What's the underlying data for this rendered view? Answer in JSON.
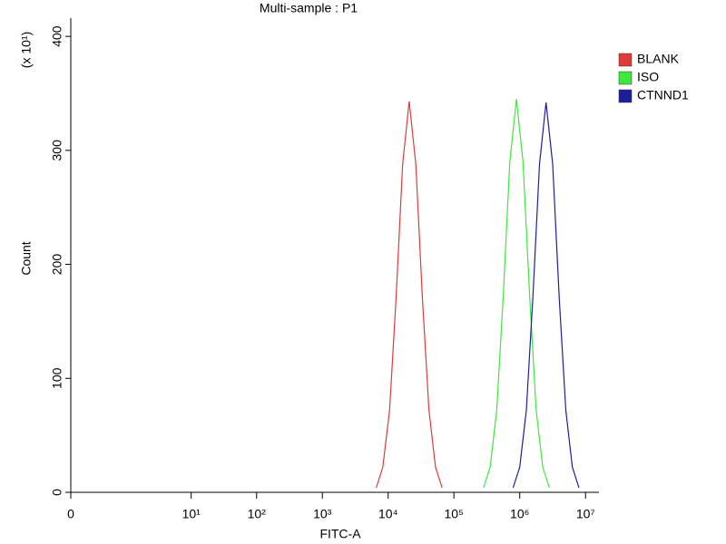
{
  "chart_data": {
    "type": "line",
    "title": "Multi-sample : P1",
    "x_label": "FITC-A",
    "y_label": "Count",
    "y_multiplier": "(x 10¹)",
    "xscale": "log",
    "xlim": [
      0,
      16000000
    ],
    "xticks": [
      0,
      {
        "value": 10,
        "label": "10¹"
      },
      {
        "value": 100,
        "label": "10²"
      },
      {
        "value": 1000,
        "label": "10³"
      },
      {
        "value": 10000,
        "label": "10⁴"
      },
      {
        "value": 100000,
        "label": "10⁵"
      },
      {
        "value": 1000000,
        "label": "10⁶"
      },
      {
        "value": 10000000,
        "label": "10⁷"
      }
    ],
    "ylim": [
      0,
      416
    ],
    "yticks": [
      0,
      100,
      200,
      300,
      400
    ],
    "legend": "right",
    "series": [
      {
        "name": "BLANK",
        "color": "#e03a3a",
        "x": [
          6600,
          8300,
          10500,
          13200,
          16600,
          20900,
          26300,
          33100,
          41700,
          52500,
          66100
        ],
        "values": [
          4,
          22,
          72,
          171,
          288,
          343,
          288,
          171,
          72,
          22,
          4
        ]
      },
      {
        "name": "ISO",
        "color": "#3ee83e",
        "x": [
          282000,
          355000,
          447000,
          562000,
          708000,
          891000,
          1122000,
          1413000,
          1778000,
          2239000,
          2818000
        ],
        "values": [
          4,
          22,
          72,
          173,
          290,
          345,
          290,
          173,
          72,
          22,
          4
        ]
      },
      {
        "name": "CTNND1",
        "color": "#1e1e9a",
        "x": [
          794000,
          1000000,
          1259000,
          1585000,
          1995000,
          2512000,
          3162000,
          3981000,
          5012000,
          6310000,
          7943000
        ],
        "values": [
          4,
          22,
          72,
          171,
          288,
          342,
          288,
          171,
          72,
          22,
          4
        ]
      }
    ]
  }
}
